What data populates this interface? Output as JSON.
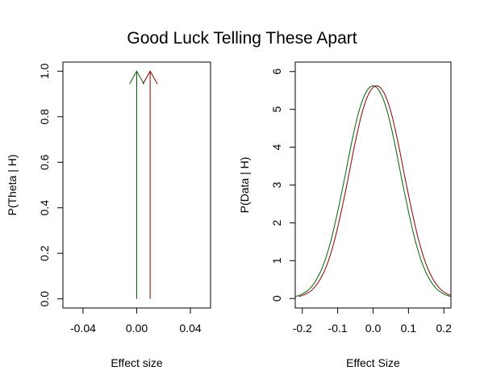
{
  "title": "Good Luck Telling These Apart",
  "colors": {
    "h0": "#006400",
    "h1": "#8B0000",
    "axis": "#000000",
    "background": "#ffffff"
  },
  "chart_data": [
    {
      "type": "line",
      "title": "",
      "xlabel": "Effect size",
      "ylabel": "P(Theta | H)",
      "xlim": [
        -0.055,
        0.055
      ],
      "ylim": [
        -0.04,
        1.04
      ],
      "xticks": [
        -0.04,
        0.0,
        0.04
      ],
      "xtick_labels": [
        "-0.04",
        "0.00",
        "0.04"
      ],
      "yticks": [
        0.0,
        0.2,
        0.4,
        0.6,
        0.8,
        1.0
      ],
      "ytick_labels": [
        "0.0",
        "0.2",
        "0.4",
        "0.6",
        "0.8",
        "1.0"
      ],
      "grid": false,
      "series": [
        {
          "x": [
            0.0,
            0.0
          ],
          "y": [
            0.0,
            1.0
          ],
          "arrow": "end",
          "color": "#006400"
        },
        {
          "x": [
            0.01,
            0.01
          ],
          "y": [
            0.0,
            1.0
          ],
          "arrow": "end",
          "color": "#8B0000"
        }
      ]
    },
    {
      "type": "line",
      "title": "",
      "xlabel": "Effect Size",
      "ylabel": "P(Data | H)",
      "xlim": [
        -0.22,
        0.22
      ],
      "ylim": [
        -0.25,
        6.25
      ],
      "xticks": [
        -0.2,
        -0.1,
        0.0,
        0.1,
        0.2
      ],
      "xtick_labels": [
        "-0.2",
        "-0.1",
        "0.0",
        "0.1",
        "0.2"
      ],
      "yticks": [
        0,
        1,
        2,
        3,
        4,
        5,
        6
      ],
      "ytick_labels": [
        "0",
        "1",
        "2",
        "3",
        "4",
        "5",
        "6"
      ],
      "grid": false,
      "series": [
        {
          "color": "#006400",
          "x": [
            -0.22,
            -0.2,
            -0.18,
            -0.16,
            -0.14,
            -0.12,
            -0.1,
            -0.08,
            -0.06,
            -0.04,
            -0.02,
            0.0,
            0.02,
            0.04,
            0.06,
            0.08,
            0.1,
            0.12,
            0.14,
            0.16,
            0.18,
            0.2,
            0.22
          ],
          "y": [
            0.05,
            0.12,
            0.25,
            0.5,
            0.9,
            1.5,
            2.3,
            3.2,
            4.15,
            4.95,
            5.45,
            5.62,
            5.45,
            4.95,
            4.15,
            3.2,
            2.3,
            1.5,
            0.9,
            0.5,
            0.25,
            0.12,
            0.05
          ]
        },
        {
          "color": "#8B0000",
          "x": [
            -0.21,
            -0.19,
            -0.17,
            -0.15,
            -0.13,
            -0.11,
            -0.09,
            -0.07,
            -0.05,
            -0.03,
            -0.01,
            0.01,
            0.03,
            0.05,
            0.07,
            0.09,
            0.11,
            0.13,
            0.15,
            0.17,
            0.19,
            0.21,
            0.23
          ],
          "y": [
            0.05,
            0.12,
            0.25,
            0.5,
            0.9,
            1.5,
            2.3,
            3.2,
            4.15,
            4.95,
            5.45,
            5.62,
            5.45,
            4.95,
            4.15,
            3.2,
            2.3,
            1.5,
            0.9,
            0.5,
            0.25,
            0.12,
            0.05
          ]
        }
      ]
    }
  ]
}
